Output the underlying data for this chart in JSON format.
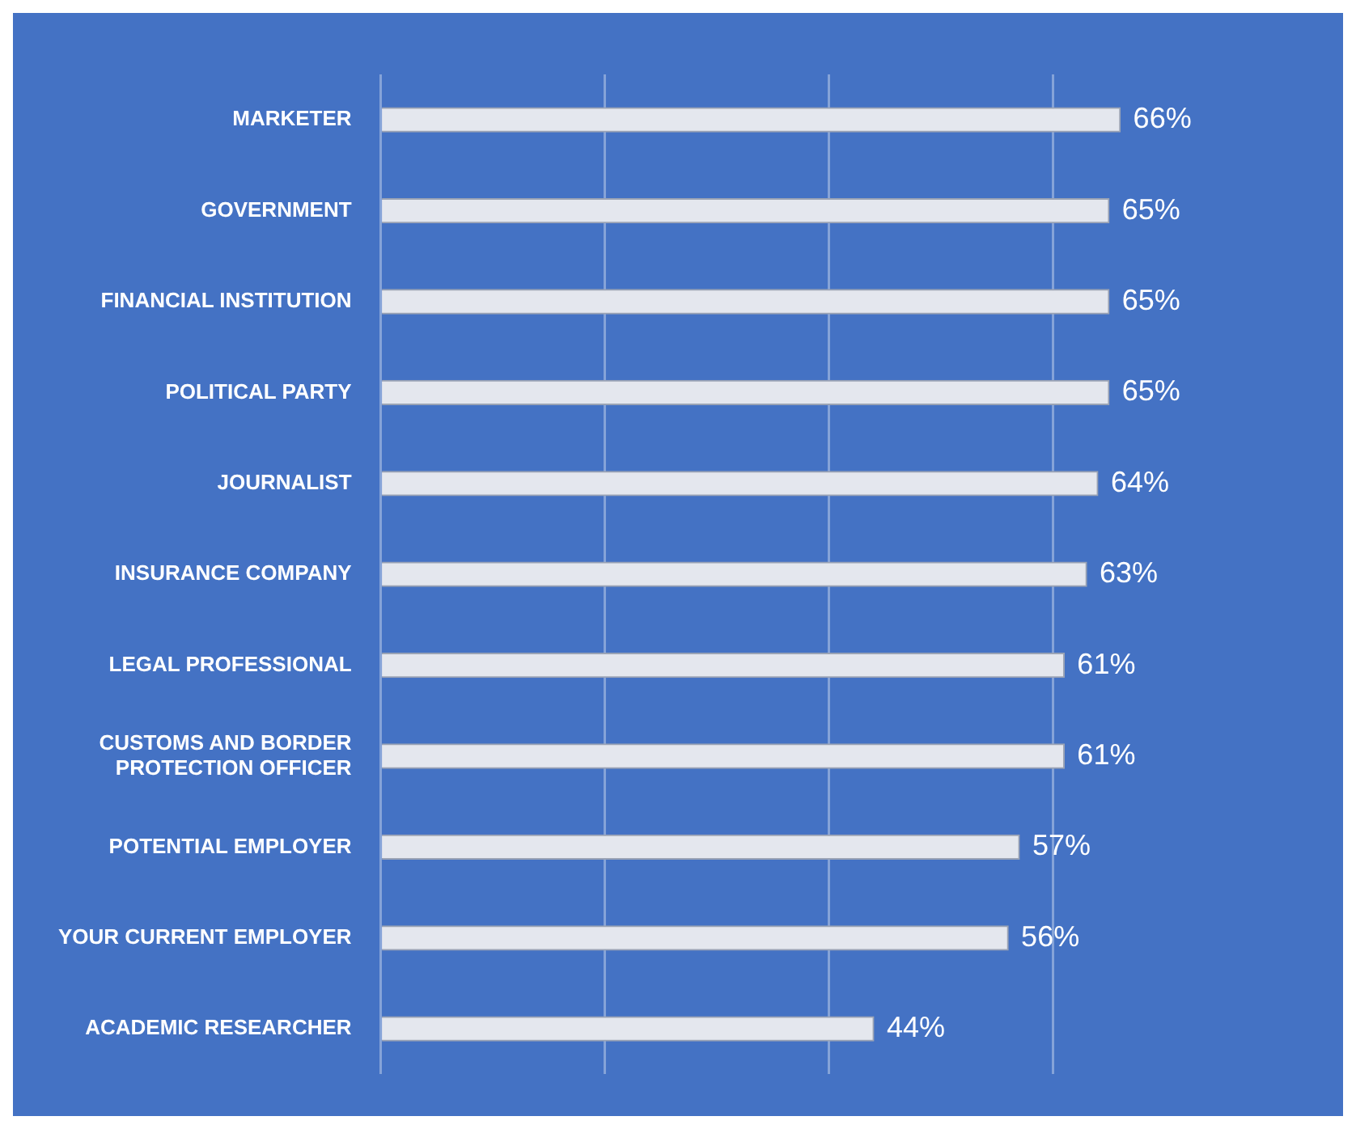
{
  "chart_data": {
    "type": "bar",
    "orientation": "horizontal",
    "categories": [
      "MARKETER",
      "GOVERNMENT",
      "FINANCIAL INSTITUTION",
      "POLITICAL PARTY",
      "JOURNALIST",
      "INSURANCE COMPANY",
      "LEGAL PROFESSIONAL",
      "CUSTOMS AND BORDER PROTECTION OFFICER",
      "POTENTIAL EMPLOYER",
      "YOUR CURRENT EMPLOYER",
      "ACADEMIC RESEARCHER"
    ],
    "values": [
      66,
      65,
      65,
      65,
      64,
      63,
      61,
      61,
      57,
      56,
      44
    ],
    "value_labels": [
      "66%",
      "65%",
      "65%",
      "65%",
      "64%",
      "63%",
      "61%",
      "61%",
      "57%",
      "56%",
      "44%"
    ],
    "color": "#e4e7ee",
    "xticks": [
      {
        "value": 0,
        "label": null
      },
      {
        "value": 20,
        "label": null
      },
      {
        "value": 40,
        "label": null
      },
      {
        "value": 60,
        "label": null
      }
    ],
    "grid": "x",
    "tick_labels": "y"
  }
}
